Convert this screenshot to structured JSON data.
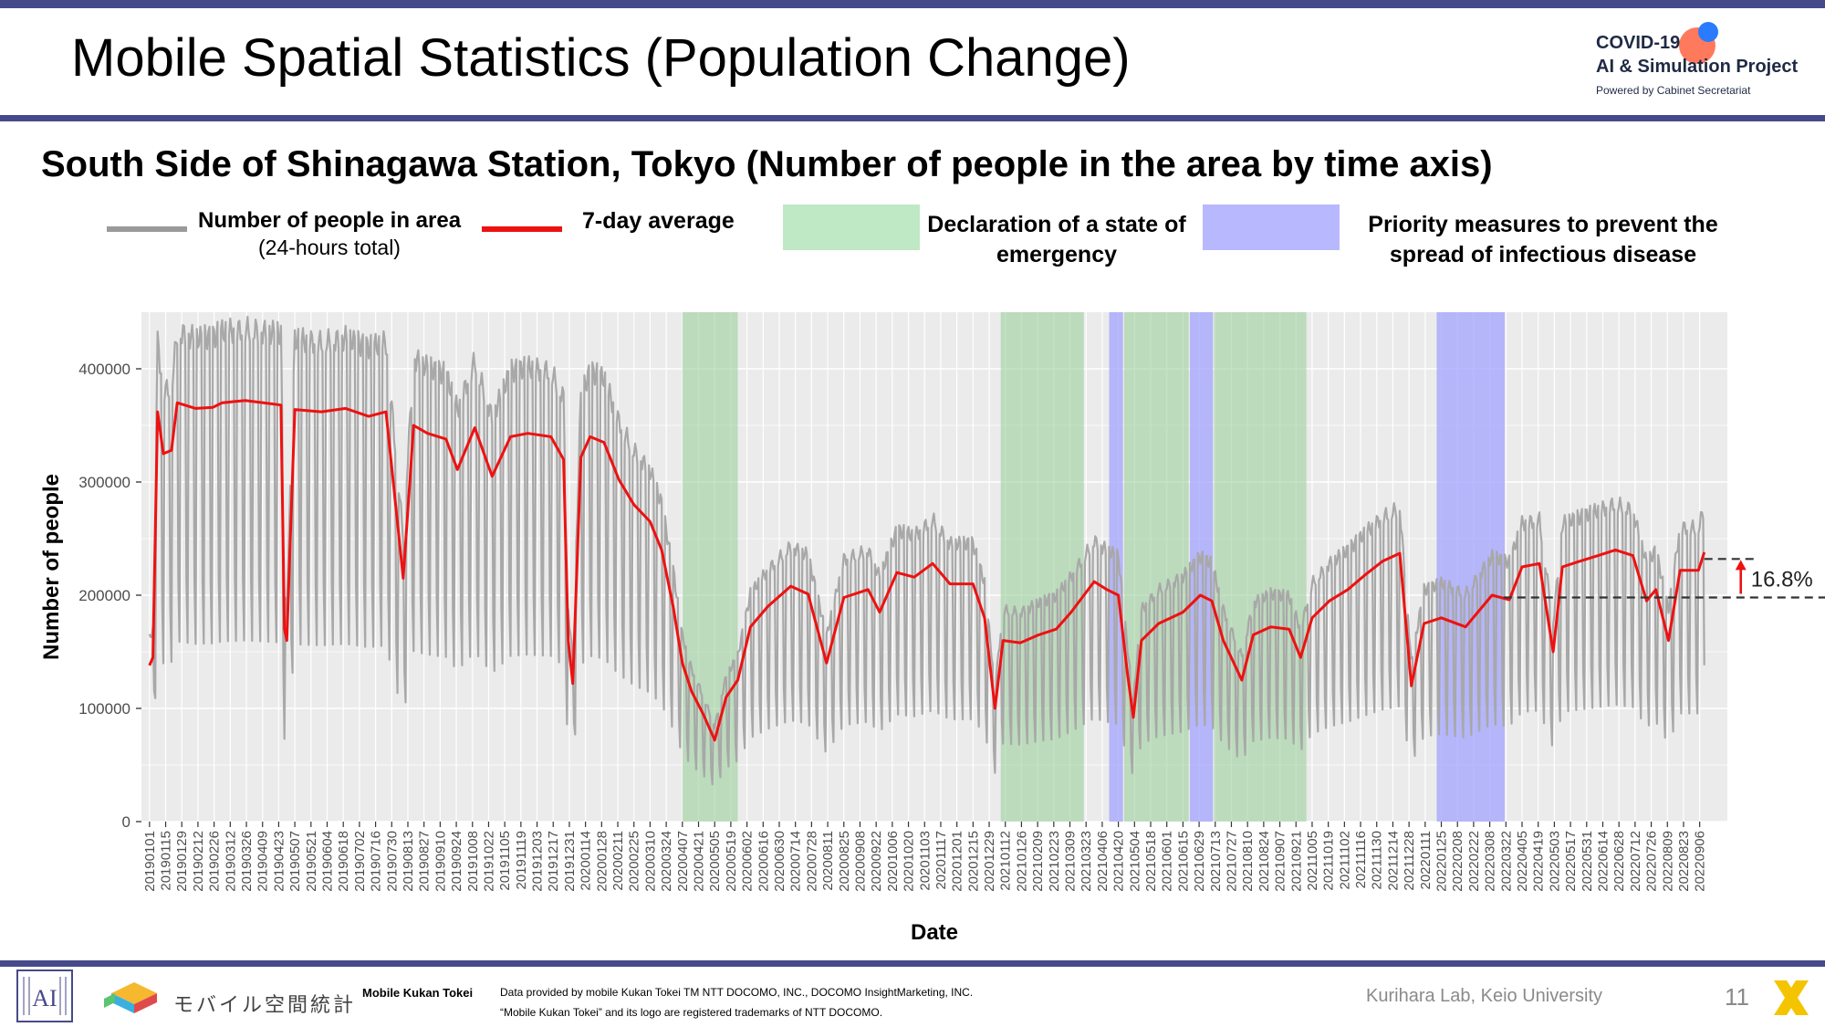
{
  "slide": {
    "title": "Mobile Spatial Statistics (Population Change)",
    "logo": {
      "line1": "COVID-19",
      "line2": "AI & Simulation Project",
      "line3": "Powered by Cabinet Secretariat",
      "accent_orange": "#ff6b4a",
      "accent_blue": "#2a7bff"
    },
    "page_number": "11"
  },
  "legend": {
    "gray_label": "Number of people in area",
    "gray_sublabel": "(24-hours total)",
    "red_label": "7-day average",
    "green_label": "Declaration of a state of emergency",
    "blue_label": "Priority measures to prevent the spread of infectious disease"
  },
  "footer": {
    "brand_jp": "モバイル空間統計",
    "brand_en": "Mobile Kukan Tokei",
    "credit_line1": "Data provided by mobile Kukan Tokei TM NTT DOCOMO, INC., DOCOMO InsightMarketing, INC.",
    "credit_line2": "“Mobile Kukan Tokei” and its logo are registered trademarks of NTT DOCOMO.",
    "lab": "Kurihara Lab, Keio University",
    "logo_left": "AI"
  },
  "colors": {
    "band": "#464a8a",
    "raw_series": "#a8a8a8",
    "avg_series": "#ee1111",
    "emergency": "#9fd09f",
    "priority": "#9f9fff",
    "plot_bg": "#ebebeb"
  },
  "chart_data": {
    "type": "line",
    "title": "South Side of Shinagawa Station, Tokyo (Number of people in the area by time axis)",
    "xlabel": "Date",
    "ylabel": "Number of people",
    "ylim": [
      0,
      450000
    ],
    "yticks": [
      0,
      100000,
      200000,
      300000,
      400000
    ],
    "ytick_labels": [
      "0",
      "100000",
      "200000",
      "300000",
      "400000"
    ],
    "x_range": [
      "20181225",
      "20220930"
    ],
    "xticks": [
      "20190101",
      "20190115",
      "20190129",
      "20190212",
      "20190226",
      "20190312",
      "20190326",
      "20190409",
      "20190423",
      "20190507",
      "20190521",
      "20190604",
      "20190618",
      "20190702",
      "20190716",
      "20190730",
      "20190813",
      "20190827",
      "20190910",
      "20190924",
      "20191008",
      "20191022",
      "20191105",
      "20191119",
      "20191203",
      "20191217",
      "20191231",
      "20200114",
      "20200128",
      "20200211",
      "20200225",
      "20200310",
      "20200324",
      "20200407",
      "20200421",
      "20200505",
      "20200519",
      "20200602",
      "20200616",
      "20200630",
      "20200714",
      "20200728",
      "20200811",
      "20200825",
      "20200908",
      "20200922",
      "20201006",
      "20201020",
      "20201103",
      "20201117",
      "20201201",
      "20201215",
      "20201229",
      "20210112",
      "20210126",
      "20210209",
      "20210223",
      "20210309",
      "20210323",
      "20210406",
      "20210420",
      "20210504",
      "20210518",
      "20210601",
      "20210615",
      "20210629",
      "20210713",
      "20210727",
      "20210810",
      "20210824",
      "20210907",
      "20210921",
      "20211005",
      "20211019",
      "20211102",
      "20211116",
      "20211130",
      "20211214",
      "20211228",
      "20220111",
      "20220125",
      "20220208",
      "20220222",
      "20220308",
      "20220322",
      "20220405",
      "20220419",
      "20220503",
      "20220517",
      "20220531",
      "20220614",
      "20220628",
      "20220712",
      "20220726",
      "20220809",
      "20220823",
      "20220906"
    ],
    "grid": true,
    "legend_position": "top",
    "emergency_periods": [
      [
        "20200407",
        "20200525"
      ],
      [
        "20210108",
        "20210321"
      ],
      [
        "20210425",
        "20210620"
      ],
      [
        "20210712",
        "20210930"
      ]
    ],
    "priority_periods": [
      [
        "20210412",
        "20210424"
      ],
      [
        "20210621",
        "20210711"
      ],
      [
        "20220121",
        "20220321"
      ]
    ],
    "avg_anchors": [
      [
        "20190101",
        138000
      ],
      [
        "20190104",
        145000
      ],
      [
        "20190108",
        362000
      ],
      [
        "20190113",
        325000
      ],
      [
        "20190120",
        328000
      ],
      [
        "20190125",
        370000
      ],
      [
        "20190210",
        365000
      ],
      [
        "20190225",
        366000
      ],
      [
        "20190305",
        370000
      ],
      [
        "20190325",
        372000
      ],
      [
        "20190410",
        370000
      ],
      [
        "20190425",
        368000
      ],
      [
        "20190428",
        170000
      ],
      [
        "20190430",
        160000
      ],
      [
        "20190507",
        364000
      ],
      [
        "20190530",
        362000
      ],
      [
        "20190620",
        365000
      ],
      [
        "20190710",
        358000
      ],
      [
        "20190725",
        362000
      ],
      [
        "20190809",
        215000
      ],
      [
        "20190818",
        350000
      ],
      [
        "20190830",
        343000
      ],
      [
        "20190915",
        338000
      ],
      [
        "20190925",
        311000
      ],
      [
        "20191010",
        348000
      ],
      [
        "20191025",
        305000
      ],
      [
        "20191110",
        340000
      ],
      [
        "20191125",
        343000
      ],
      [
        "20191215",
        340000
      ],
      [
        "20191226",
        320000
      ],
      [
        "20191230",
        160000
      ],
      [
        "20200103",
        122000
      ],
      [
        "20200110",
        322000
      ],
      [
        "20200118",
        340000
      ],
      [
        "20200130",
        335000
      ],
      [
        "20200212",
        302000
      ],
      [
        "20200225",
        280000
      ],
      [
        "20200310",
        265000
      ],
      [
        "20200320",
        240000
      ],
      [
        "20200330",
        190000
      ],
      [
        "20200407",
        140000
      ],
      [
        "20200415",
        115000
      ],
      [
        "20200425",
        95000
      ],
      [
        "20200505",
        72000
      ],
      [
        "20200515",
        110000
      ],
      [
        "20200525",
        125000
      ],
      [
        "20200605",
        172000
      ],
      [
        "20200620",
        190000
      ],
      [
        "20200710",
        208000
      ],
      [
        "20200725",
        201000
      ],
      [
        "20200810",
        140000
      ],
      [
        "20200825",
        198000
      ],
      [
        "20200915",
        205000
      ],
      [
        "20200925",
        185000
      ],
      [
        "20201010",
        220000
      ],
      [
        "20201025",
        216000
      ],
      [
        "20201110",
        228000
      ],
      [
        "20201125",
        210000
      ],
      [
        "20201215",
        210000
      ],
      [
        "20201225",
        180000
      ],
      [
        "20210103",
        100000
      ],
      [
        "20210110",
        160000
      ],
      [
        "20210125",
        158000
      ],
      [
        "20210210",
        165000
      ],
      [
        "20210225",
        170000
      ],
      [
        "20210310",
        185000
      ],
      [
        "20210330",
        212000
      ],
      [
        "20210410",
        205000
      ],
      [
        "20210420",
        200000
      ],
      [
        "20210428",
        130000
      ],
      [
        "20210503",
        92000
      ],
      [
        "20210510",
        160000
      ],
      [
        "20210525",
        175000
      ],
      [
        "20210615",
        185000
      ],
      [
        "20210630",
        200000
      ],
      [
        "20210710",
        195000
      ],
      [
        "20210720",
        160000
      ],
      [
        "20210805",
        125000
      ],
      [
        "20210815",
        165000
      ],
      [
        "20210830",
        172000
      ],
      [
        "20210915",
        170000
      ],
      [
        "20210925",
        145000
      ],
      [
        "20211005",
        180000
      ],
      [
        "20211020",
        195000
      ],
      [
        "20211105",
        205000
      ],
      [
        "20211120",
        218000
      ],
      [
        "20211205",
        230000
      ],
      [
        "20211220",
        237000
      ],
      [
        "20211230",
        120000
      ],
      [
        "20220110",
        175000
      ],
      [
        "20220125",
        180000
      ],
      [
        "20220215",
        172000
      ],
      [
        "20220310",
        200000
      ],
      [
        "20220325",
        196000
      ],
      [
        "20220405",
        225000
      ],
      [
        "20220420",
        228000
      ],
      [
        "20220502",
        150000
      ],
      [
        "20220510",
        225000
      ],
      [
        "20220525",
        230000
      ],
      [
        "20220610",
        235000
      ],
      [
        "20220625",
        240000
      ],
      [
        "20220710",
        235000
      ],
      [
        "20220722",
        195000
      ],
      [
        "20220730",
        205000
      ],
      [
        "20220810",
        160000
      ],
      [
        "20220820",
        222000
      ],
      [
        "20220905",
        222000
      ],
      [
        "20220910",
        238000
      ]
    ],
    "annotations": [
      {
        "text": "16.8%",
        "from": 198000,
        "to": 232000,
        "date": "20220910"
      }
    ]
  }
}
